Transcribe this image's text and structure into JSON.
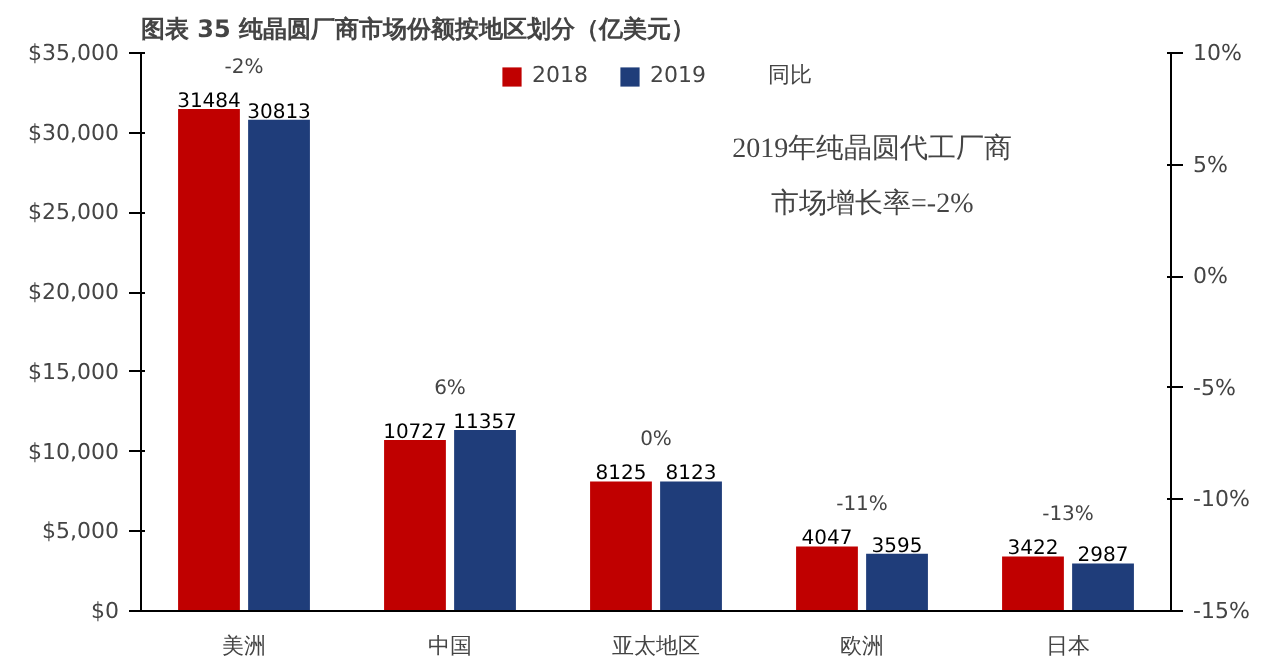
{
  "chart_data": {
    "type": "bar",
    "title": "图表 35   纯晶圆厂商市场份额按地区划分（亿美元）",
    "categories": [
      "美洲",
      "中国",
      "亚太地区",
      "欧洲",
      "日本"
    ],
    "series": [
      {
        "name": "2018",
        "color": "#c00000",
        "values": [
          31484,
          10727,
          8125,
          4047,
          3422
        ]
      },
      {
        "name": "2019",
        "color": "#1f3d7a",
        "values": [
          30813,
          11357,
          8123,
          3595,
          2987
        ]
      },
      {
        "name": "同比",
        "type": "line",
        "values": [
          null,
          null,
          null,
          null,
          null
        ]
      }
    ],
    "ylim": [
      0,
      35000
    ],
    "yticks": [
      {
        "value": 0,
        "label": "$0"
      },
      {
        "value": 5000,
        "label": "$5,000"
      },
      {
        "value": 10000,
        "label": "$10,000"
      },
      {
        "value": 15000,
        "label": "$15,000"
      },
      {
        "value": 20000,
        "label": "$20,000"
      },
      {
        "value": 25000,
        "label": "$25,000"
      },
      {
        "value": 30000,
        "label": "$30,000"
      },
      {
        "value": 35000,
        "label": "$35,000"
      }
    ],
    "y2lim": [
      -15,
      10
    ],
    "y2ticks": [
      {
        "value": -15,
        "label": "-15%"
      },
      {
        "value": -10,
        "label": "-10%"
      },
      {
        "value": -5,
        "label": "-5%"
      },
      {
        "value": 0,
        "label": "0%"
      },
      {
        "value": 5,
        "label": "5%"
      },
      {
        "value": 10,
        "label": "10%"
      }
    ],
    "data_labels": true,
    "grid": false,
    "legend": "top",
    "annotations": [
      "-2%",
      "6%",
      "0%",
      "-11%",
      "-13%",
      "2019年纯晶圆代工厂商",
      "市场增长率=-2%"
    ]
  }
}
